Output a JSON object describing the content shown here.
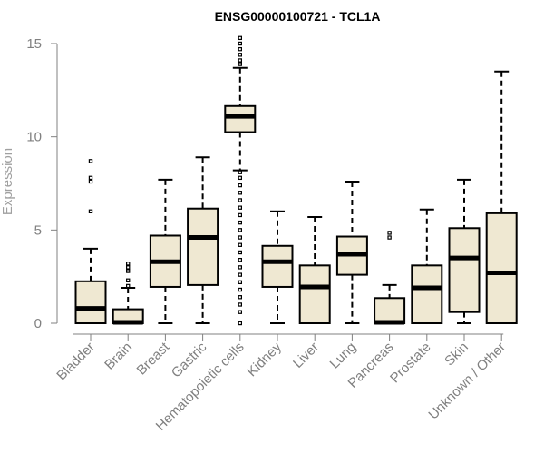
{
  "chart_data": {
    "type": "box",
    "title": "ENSG00000100721 - TCL1A",
    "ylabel": "Expression",
    "xlabel": "",
    "ylim": [
      0,
      15
    ],
    "yticks": [
      0,
      5,
      10,
      15
    ],
    "box_fill": "#efe8d2",
    "categories": [
      "Bladder",
      "Brain",
      "Breast",
      "Gastric",
      "Hematopoietic cells",
      "Kidney",
      "Liver",
      "Lung",
      "Pancreas",
      "Prostate",
      "Skin",
      "Unknown / Other"
    ],
    "boxes": [
      {
        "category": "Bladder",
        "whisker_low": 0,
        "q1": 0,
        "median": 0.8,
        "q3": 2.25,
        "whisker_high": 4.0,
        "outliers": [
          6.0,
          7.6,
          7.8,
          8.7
        ]
      },
      {
        "category": "Brain",
        "whisker_low": 0,
        "q1": 0,
        "median": 0.05,
        "q3": 0.75,
        "whisker_high": 1.9,
        "outliers": [
          2.0,
          2.3,
          2.8,
          3.0,
          3.2
        ]
      },
      {
        "category": "Breast",
        "whisker_low": 0,
        "q1": 1.95,
        "median": 3.3,
        "q3": 4.7,
        "whisker_high": 7.7,
        "outliers": []
      },
      {
        "category": "Gastric",
        "whisker_low": 0,
        "q1": 2.05,
        "median": 4.6,
        "q3": 6.15,
        "whisker_high": 8.9,
        "outliers": []
      },
      {
        "category": "Hematopoietic cells",
        "whisker_low": 8.2,
        "q1": 10.25,
        "median": 11.1,
        "q3": 11.65,
        "whisker_high": 13.7,
        "outliers": [
          0.0,
          0.6,
          1.0,
          1.4,
          1.8,
          2.2,
          2.6,
          3.0,
          3.4,
          3.8,
          4.2,
          4.6,
          5.0,
          5.4,
          5.8,
          6.2,
          6.6,
          7.0,
          7.4,
          7.8,
          8.1,
          13.9,
          14.1,
          14.4,
          14.7,
          15.0,
          15.3
        ]
      },
      {
        "category": "Kidney",
        "whisker_low": 0,
        "q1": 1.95,
        "median": 3.3,
        "q3": 4.15,
        "whisker_high": 6.0,
        "outliers": []
      },
      {
        "category": "Liver",
        "whisker_low": 0,
        "q1": 0,
        "median": 1.95,
        "q3": 3.1,
        "whisker_high": 5.7,
        "outliers": []
      },
      {
        "category": "Lung",
        "whisker_low": 0,
        "q1": 2.6,
        "median": 3.7,
        "q3": 4.65,
        "whisker_high": 7.6,
        "outliers": []
      },
      {
        "category": "Pancreas",
        "whisker_low": 0,
        "q1": 0,
        "median": 0.05,
        "q3": 1.35,
        "whisker_high": 2.05,
        "outliers": [
          4.6,
          4.85
        ]
      },
      {
        "category": "Prostate",
        "whisker_low": 0,
        "q1": 0,
        "median": 1.9,
        "q3": 3.1,
        "whisker_high": 6.1,
        "outliers": []
      },
      {
        "category": "Skin",
        "whisker_low": 0,
        "q1": 0.6,
        "median": 3.5,
        "q3": 5.1,
        "whisker_high": 7.7,
        "outliers": []
      },
      {
        "category": "Unknown / Other",
        "whisker_low": 0,
        "q1": 0,
        "median": 2.7,
        "q3": 5.9,
        "whisker_high": 13.5,
        "outliers": []
      }
    ]
  }
}
